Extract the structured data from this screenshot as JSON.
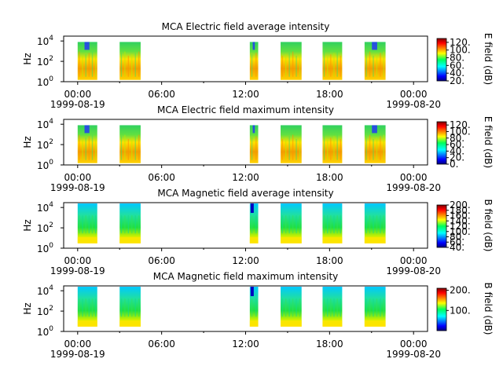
{
  "colors": {
    "background": "#ffffff",
    "axis": "#000000"
  },
  "chart_data": [
    {
      "type": "heatmap",
      "title": "MCA  Electric field average intensity",
      "ylabel": "Hz",
      "y_scale": "log",
      "ylim": [
        1,
        30000
      ],
      "y_ticks": [
        {
          "label": "10",
          "exp": "0"
        },
        {
          "label": "10",
          "exp": "2"
        },
        {
          "label": "10",
          "exp": "4"
        }
      ],
      "x_ticks": [
        "00:00",
        "06:00",
        "12:00",
        "18:00",
        "00:00"
      ],
      "x_tick_values": [
        0,
        6,
        12,
        18,
        24
      ],
      "xlim": [
        -1,
        25
      ],
      "date_labels": [
        "1999-08-19",
        "1999-08-20"
      ],
      "colorbar_label": "E field (dB)",
      "colorbar_ticks": [
        "20.",
        "40.",
        "60.",
        "80.",
        "100.",
        "120."
      ],
      "colorbar_tick_values": [
        20,
        40,
        60,
        80,
        100,
        120
      ],
      "colorbar_range": [
        20,
        130
      ],
      "data_segments_hours": [
        [
          0.0,
          1.4
        ],
        [
          3.0,
          4.5
        ],
        [
          12.3,
          12.9
        ],
        [
          14.5,
          16.0
        ],
        [
          17.5,
          18.9
        ],
        [
          20.5,
          22.0
        ]
      ]
    },
    {
      "type": "heatmap",
      "title": "MCA  Electric field maximum intensity",
      "ylabel": "Hz",
      "y_scale": "log",
      "ylim": [
        1,
        30000
      ],
      "y_ticks": [
        {
          "label": "10",
          "exp": "0"
        },
        {
          "label": "10",
          "exp": "2"
        },
        {
          "label": "10",
          "exp": "4"
        }
      ],
      "x_ticks": [
        "00:00",
        "06:00",
        "12:00",
        "18:00",
        "00:00"
      ],
      "x_tick_values": [
        0,
        6,
        12,
        18,
        24
      ],
      "xlim": [
        -1,
        25
      ],
      "date_labels": [
        "1999-08-19",
        "1999-08-20"
      ],
      "colorbar_label": "E field (dB)",
      "colorbar_ticks": [
        "0.",
        "20.",
        "40.",
        "60.",
        "80.",
        "100.",
        "120."
      ],
      "colorbar_tick_values": [
        0,
        20,
        40,
        60,
        80,
        100,
        120
      ],
      "colorbar_range": [
        0,
        130
      ],
      "data_segments_hours": [
        [
          0.0,
          1.4
        ],
        [
          3.0,
          4.5
        ],
        [
          12.3,
          12.9
        ],
        [
          14.5,
          16.0
        ],
        [
          17.5,
          18.9
        ],
        [
          20.5,
          22.0
        ]
      ]
    },
    {
      "type": "heatmap",
      "title": "MCA  Magnetic field average intensity",
      "ylabel": "Hz",
      "y_scale": "log",
      "ylim": [
        1,
        30000
      ],
      "y_ticks": [
        {
          "label": "10",
          "exp": "0"
        },
        {
          "label": "10",
          "exp": "2"
        },
        {
          "label": "10",
          "exp": "4"
        }
      ],
      "x_ticks": [
        "00:00",
        "06:00",
        "12:00",
        "18:00",
        "00:00"
      ],
      "x_tick_values": [
        0,
        6,
        12,
        18,
        24
      ],
      "xlim": [
        -1,
        25
      ],
      "date_labels": [
        "1999-08-19",
        "1999-08-20"
      ],
      "colorbar_label": "B field (dB)",
      "colorbar_ticks": [
        "40.",
        "60.",
        "80.",
        "100.",
        "120.",
        "140.",
        "160.",
        "180.",
        "200."
      ],
      "colorbar_tick_values": [
        40,
        60,
        80,
        100,
        120,
        140,
        160,
        180,
        200
      ],
      "colorbar_range": [
        40,
        200
      ],
      "data_segments_hours": [
        [
          0.0,
          1.4
        ],
        [
          3.0,
          4.5
        ],
        [
          12.3,
          12.9
        ],
        [
          14.5,
          16.0
        ],
        [
          17.5,
          18.9
        ],
        [
          20.5,
          22.0
        ]
      ]
    },
    {
      "type": "heatmap",
      "title": "MCA  Magnetic field maximum intensity",
      "ylabel": "Hz",
      "y_scale": "log",
      "ylim": [
        1,
        30000
      ],
      "y_ticks": [
        {
          "label": "10",
          "exp": "0"
        },
        {
          "label": "10",
          "exp": "2"
        },
        {
          "label": "10",
          "exp": "4"
        }
      ],
      "x_ticks": [
        "00:00",
        "06:00",
        "12:00",
        "18:00",
        "00:00"
      ],
      "x_tick_values": [
        0,
        6,
        12,
        18,
        24
      ],
      "xlim": [
        -1,
        25
      ],
      "date_labels": [
        "1999-08-19",
        "1999-08-20"
      ],
      "colorbar_label": "B field (dB)",
      "colorbar_ticks": [
        "100.",
        "200."
      ],
      "colorbar_tick_values": [
        100,
        200
      ],
      "colorbar_range": [
        0,
        210
      ],
      "data_segments_hours": [
        [
          0.0,
          1.4
        ],
        [
          3.0,
          4.5
        ],
        [
          12.3,
          12.9
        ],
        [
          14.5,
          16.0
        ],
        [
          17.5,
          18.9
        ],
        [
          20.5,
          22.0
        ]
      ]
    }
  ]
}
